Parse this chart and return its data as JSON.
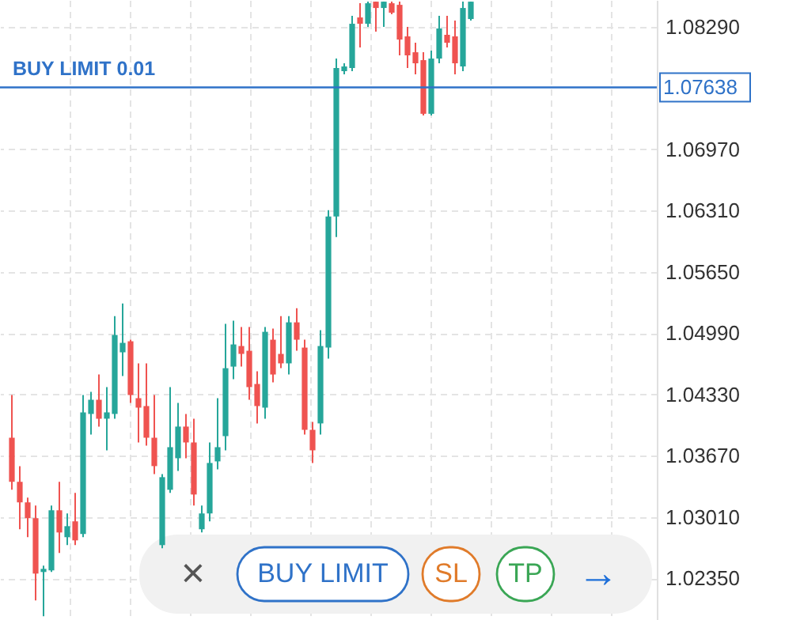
{
  "chart_data": {
    "type": "candlestick",
    "categories": [
      null,
      null,
      null,
      null,
      null,
      null,
      null,
      null,
      null,
      null,
      null,
      null,
      null,
      null,
      null,
      null,
      null,
      null,
      null,
      null,
      null,
      null,
      null,
      null,
      null,
      null,
      null,
      null,
      null,
      null,
      null,
      null,
      null,
      null,
      null,
      null,
      null,
      null,
      null,
      null,
      null,
      null,
      null,
      null,
      null,
      null,
      null,
      null,
      null,
      null,
      null,
      null,
      null,
      null,
      null,
      null,
      null,
      null,
      null,
      null,
      null,
      null,
      null,
      null,
      null,
      null,
      null,
      null,
      null,
      null,
      null,
      null,
      null,
      null,
      null,
      null,
      null,
      null,
      null,
      null,
      null
    ],
    "ohlc": [
      [
        1.03864,
        1.04324,
        1.03303,
        1.03388
      ],
      [
        1.03388,
        1.03558,
        1.02877,
        1.03167
      ],
      [
        1.03167,
        1.03218,
        1.02792,
        1.02997
      ],
      [
        1.02997,
        1.03133,
        1.02111,
        1.024
      ],
      [
        1.02417,
        1.02486,
        1.01941,
        1.02451
      ],
      [
        1.02434,
        1.03133,
        1.02417,
        1.03082
      ],
      [
        1.03082,
        1.03388,
        1.02622,
        1.02843
      ],
      [
        1.02792,
        1.03048,
        1.02707,
        1.02911
      ],
      [
        1.02963,
        1.03269,
        1.02707,
        1.02758
      ],
      [
        1.02826,
        1.04324,
        1.02792,
        1.04137
      ],
      [
        1.0412,
        1.04358,
        1.03898,
        1.04273
      ],
      [
        1.04273,
        1.04545,
        1.03984,
        1.04069
      ],
      [
        1.04069,
        1.04409,
        1.03728,
        1.04137
      ],
      [
        1.0412,
        1.05175,
        1.04069,
        1.04971
      ],
      [
        1.04784,
        1.05311,
        1.04528,
        1.04886
      ],
      [
        1.04903,
        1.0492,
        1.04239,
        1.04324
      ],
      [
        1.0429,
        1.04665,
        1.03813,
        1.04188
      ],
      [
        1.04205,
        1.04665,
        1.03779,
        1.03864
      ],
      [
        1.03864,
        1.04324,
        1.03473,
        1.03558
      ],
      [
        1.02707,
        1.03473,
        1.02673,
        1.03439
      ],
      [
        1.03303,
        1.04409,
        1.03269,
        1.03762
      ],
      [
        1.03643,
        1.04239,
        1.03507,
        1.03984
      ],
      [
        1.03984,
        1.0412,
        1.03643,
        1.03813
      ],
      [
        1.03813,
        1.04069,
        1.03133,
        1.03252
      ],
      [
        1.02877,
        1.03133,
        1.02843,
        1.03048
      ],
      [
        1.03048,
        1.03813,
        1.02963,
        1.03592
      ],
      [
        1.03609,
        1.0429,
        1.03524,
        1.03762
      ],
      [
        1.03881,
        1.0509,
        1.03728,
        1.04613
      ],
      [
        1.0463,
        1.05124,
        1.04494,
        1.04869
      ],
      [
        1.04852,
        1.05056,
        1.0463,
        1.04767
      ],
      [
        1.04801,
        1.05056,
        1.04273,
        1.04409
      ],
      [
        1.04443,
        1.04579,
        1.04018,
        1.04205
      ],
      [
        1.04188,
        1.05056,
        1.04069,
        1.05005
      ],
      [
        1.0492,
        1.05039,
        1.0446,
        1.04545
      ],
      [
        1.04767,
        1.05175,
        1.04613,
        1.04665
      ],
      [
        1.04665,
        1.05175,
        1.04545,
        1.05107
      ],
      [
        1.05107,
        1.0526,
        1.04801,
        1.0492
      ],
      [
        1.04835,
        1.0492,
        1.03898,
        1.03949
      ],
      [
        1.03949,
        1.04035,
        1.03592,
        1.03728
      ],
      [
        1.04018,
        1.05022,
        1.03898,
        1.04852
      ],
      [
        1.04835,
        1.06315,
        1.04716,
        1.06247
      ],
      [
        1.06247,
        1.07949,
        1.06026,
        1.07847
      ],
      [
        1.07813,
        1.07898,
        1.07779,
        1.07864
      ],
      [
        1.07847,
        1.08409,
        1.07813,
        1.08324
      ],
      [
        1.08392,
        1.08545,
        1.08068,
        1.08324
      ],
      [
        1.08324,
        1.08562,
        1.0829,
        1.08545
      ],
      [
        1.08562,
        1.08562,
        1.08239,
        1.08494
      ],
      [
        1.08494,
        1.08562,
        1.0829,
        1.08562
      ],
      [
        1.08545,
        1.08562,
        1.08426,
        1.08443
      ],
      [
        1.08528,
        1.08562,
        1.07983,
        1.08154
      ],
      [
        1.08188,
        1.0829,
        1.07847,
        1.07983
      ],
      [
        1.08017,
        1.08119,
        1.07779,
        1.07898
      ],
      [
        1.07932,
        1.08017,
        1.07337,
        1.07354
      ],
      [
        1.07354,
        1.08034,
        1.07337,
        1.07949
      ],
      [
        1.07949,
        1.08409,
        1.07898,
        1.08273
      ],
      [
        1.08205,
        1.08409,
        1.08068,
        1.08119
      ],
      [
        1.08188,
        1.08358,
        1.07779,
        1.07898
      ],
      [
        1.07864,
        1.08562,
        1.07813,
        1.08494
      ],
      [
        1.08375,
        1.08562,
        1.08358,
        1.08562
      ],
      null,
      null,
      null,
      null,
      null,
      null,
      null,
      null,
      null,
      null,
      null,
      null,
      null,
      null,
      null,
      null,
      null,
      null,
      null,
      null,
      null,
      null
    ],
    "colors": [
      "#ef5350",
      "#ef5350",
      "#ef5350",
      "#ef5350",
      "#26a69a",
      "#26a69a",
      "#ef5350",
      "#26a69a",
      "#ef5350",
      "#26a69a",
      "#26a69a",
      "#ef5350",
      "#26a69a",
      "#26a69a",
      "#26a69a",
      "#ef5350",
      "#ef5350",
      "#ef5350",
      "#ef5350",
      "#26a69a",
      "#26a69a",
      "#26a69a",
      "#ef5350",
      "#ef5350",
      "#26a69a",
      "#26a69a",
      "#26a69a",
      "#26a69a",
      "#26a69a",
      "#ef5350",
      "#ef5350",
      "#ef5350",
      "#26a69a",
      "#ef5350",
      "#ef5350",
      "#26a69a",
      "#ef5350",
      "#ef5350",
      "#ef5350",
      "#26a69a",
      "#26a69a",
      "#26a69a",
      "#26a69a",
      "#26a69a",
      "#ef5350",
      "#26a69a",
      "#ef5350",
      "#26a69a",
      "#ef5350",
      "#ef5350",
      "#ef5350",
      "#ef5350",
      "#ef5350",
      "#26a69a",
      "#26a69a",
      "#ef5350",
      "#ef5350",
      "#26a69a",
      "#26a69a",
      null,
      null,
      null,
      null,
      null,
      null,
      null,
      null,
      null,
      null,
      null,
      null,
      null,
      null,
      null,
      null,
      null,
      null,
      null,
      null,
      null,
      null
    ],
    "ylim": [
      1.019,
      1.0858
    ],
    "yticks": [
      {
        "value": 1.0235,
        "label": "1.02350"
      },
      {
        "value": 1.0301,
        "label": "1.03010"
      },
      {
        "value": 1.0367,
        "label": "1.03670"
      },
      {
        "value": 1.0433,
        "label": "1.04330"
      },
      {
        "value": 1.0499,
        "label": "1.04990"
      },
      {
        "value": 1.0565,
        "label": "1.05650"
      },
      {
        "value": 1.0631,
        "label": "1.06310"
      },
      {
        "value": 1.0697,
        "label": "1.06970"
      },
      {
        "value": 1.0829,
        "label": "1.08290"
      }
    ],
    "grid": true,
    "tick_labels": "y",
    "ref_lines": [
      {
        "axis": "y",
        "value": 1.07638,
        "label": "BUY LIMIT 0.01",
        "color": "#2f72c8"
      }
    ],
    "annotations": [
      "1.07638",
      "×",
      "BUY LIMIT",
      "SL",
      "TP",
      "→"
    ]
  }
}
